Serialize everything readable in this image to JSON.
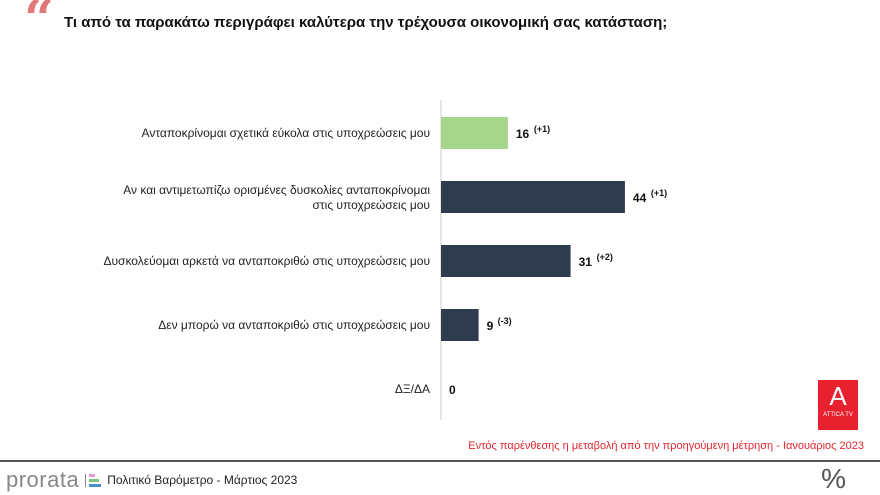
{
  "chart_data": {
    "type": "bar",
    "orientation": "horizontal",
    "title": "Τι από τα παρακάτω περιγράφει καλύτερα την τρέχουσα οικονομική σας κατάσταση;",
    "categories": [
      "Ανταποκρίνομαι σχετικά εύκολα στις υποχρεώσεις μου",
      "Αν και αντιμετωπίζω ορισμένες δυσκολίες ανταποκρίνομαι στις υποχρεώσεις μου",
      "Δυσκολεύομαι αρκετά να ανταποκριθώ στις υποχρεώσεις μου",
      "Δεν μπορώ να ανταποκριθώ στις υποχρεώσεις μου",
      "ΔΞ/ΔΑ"
    ],
    "values": [
      16,
      44,
      31,
      9,
      0
    ],
    "changes": [
      "(+1)",
      "(+1)",
      "(+2)",
      "(-3)",
      ""
    ],
    "colors": [
      "#a6d58c",
      "#2f3b4f",
      "#2f3b4f",
      "#2f3b4f",
      "#2f3b4f"
    ],
    "unit": "%"
  },
  "note": "Εντός παρένθεσης η μεταβολή από την προηγούμενη μέτρηση - Ιανουάριος 2023",
  "footer": {
    "brand": "prorata",
    "text": "Πολιτικό Βαρόμετρο - Μάρτιος 2023",
    "unit_symbol": "%"
  },
  "logo": {
    "text": "ATTICA TV",
    "letter": "Α"
  }
}
